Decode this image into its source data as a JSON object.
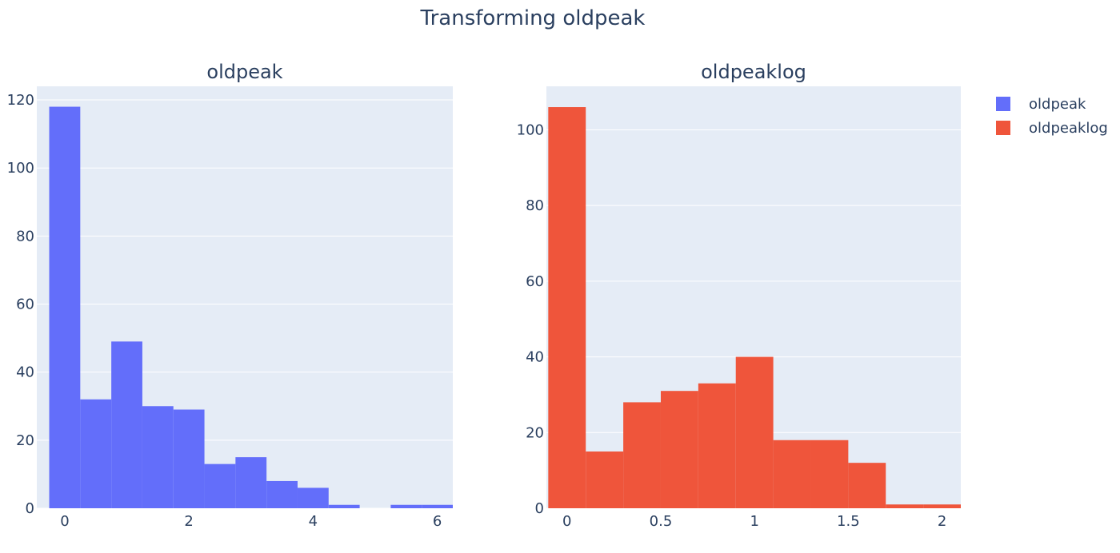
{
  "title": "Transforming oldpeak",
  "colors": {
    "plot_bg": "#e5ecf6",
    "grid": "#ffffff",
    "text": "#2a3f5f"
  },
  "chart_data": [
    {
      "type": "bar",
      "subplot_title": "oldpeak",
      "series_name": "oldpeak",
      "color": "#636efa",
      "bin_edges": [
        -0.25,
        0.25,
        0.75,
        1.25,
        1.75,
        2.25,
        2.75,
        3.25,
        3.75,
        4.25,
        4.75,
        5.25,
        5.75,
        6.25
      ],
      "values": [
        118,
        32,
        49,
        30,
        29,
        13,
        15,
        8,
        6,
        1,
        0,
        1,
        1
      ],
      "xlim": [
        -0.45,
        6.25
      ],
      "ylim": [
        0,
        124
      ],
      "xticks": [
        0,
        2,
        4,
        6
      ],
      "xtick_labels": [
        "0",
        "2",
        "4",
        "6"
      ],
      "yticks": [
        0,
        20,
        40,
        60,
        80,
        100,
        120
      ],
      "ytick_labels": [
        "0",
        "20",
        "40",
        "60",
        "80",
        "100",
        "120"
      ]
    },
    {
      "type": "bar",
      "subplot_title": "oldpeaklog",
      "series_name": "oldpeaklog",
      "color": "#ef553b",
      "bin_edges": [
        -0.1,
        0.1,
        0.3,
        0.5,
        0.7,
        0.9,
        1.1,
        1.3,
        1.5,
        1.7,
        1.9,
        2.1
      ],
      "values": [
        106,
        15,
        28,
        31,
        33,
        40,
        18,
        18,
        12,
        1,
        1
      ],
      "xlim": [
        -0.11,
        2.1
      ],
      "ylim": [
        0,
        111.5
      ],
      "xticks": [
        0,
        0.5,
        1,
        1.5,
        2
      ],
      "xtick_labels": [
        "0",
        "0.5",
        "1",
        "1.5",
        "2"
      ],
      "yticks": [
        0,
        20,
        40,
        60,
        80,
        100
      ],
      "ytick_labels": [
        "0",
        "20",
        "40",
        "60",
        "80",
        "100"
      ]
    }
  ],
  "legend": [
    {
      "label": "oldpeak",
      "color": "#636efa"
    },
    {
      "label": "oldpeaklog",
      "color": "#ef553b"
    }
  ]
}
